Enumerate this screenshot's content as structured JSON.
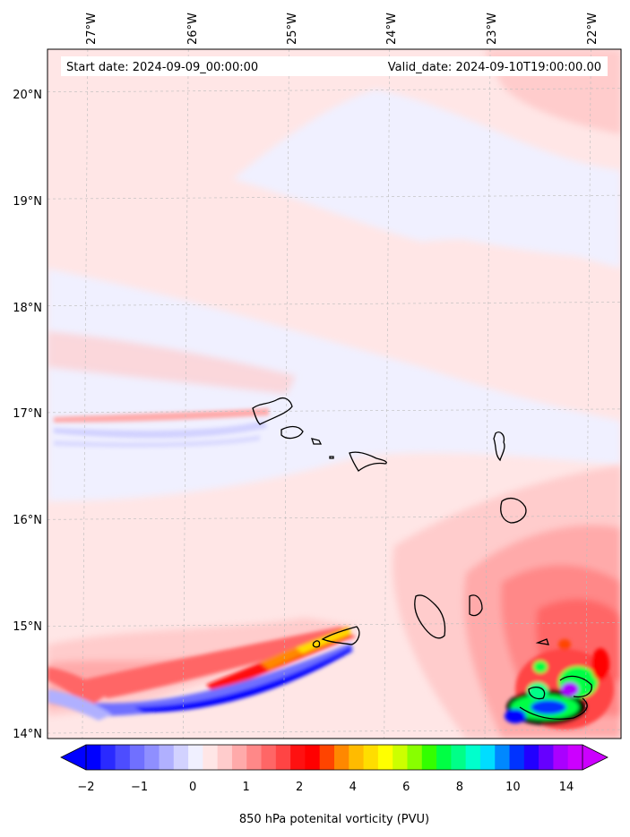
{
  "chart_data": {
    "type": "heatmap",
    "title_left": "Start date: 2024-09-09_00:00:00",
    "title_right": "Valid_date: 2024-09-10T19:00:00.00",
    "colorbar_label": "850 hPa potenital vorticity (PVU)",
    "lon_ticks": [
      "27°W",
      "26°W",
      "25°W",
      "24°W",
      "23°W",
      "22°W"
    ],
    "lat_ticks": [
      "20°N",
      "19°N",
      "18°N",
      "17°N",
      "16°N",
      "15°N",
      "14°N"
    ],
    "lon_range": [
      -27.4,
      -21.7
    ],
    "lat_range": [
      13.95,
      20.4
    ],
    "colorbar_ticks": [
      "−2",
      "−1",
      "0",
      "1",
      "2",
      "4",
      "6",
      "8",
      "10",
      "14"
    ],
    "colorbar_colors": [
      "#0000ff",
      "#2a2aff",
      "#4d4dff",
      "#7070ff",
      "#8f8fff",
      "#b0b0ff",
      "#d2d2ff",
      "#f0f0ff",
      "#ffe6e6",
      "#ffcccc",
      "#ffaaaa",
      "#ff8888",
      "#ff6666",
      "#ff4444",
      "#ff1111",
      "#ff0000",
      "#ff4400",
      "#ff8800",
      "#ffbb00",
      "#ffdd00",
      "#ffff00",
      "#ccff00",
      "#88ff00",
      "#33ff00",
      "#00ff44",
      "#00ff88",
      "#00ffcc",
      "#00ddff",
      "#0088ff",
      "#0033ff",
      "#2200ff",
      "#6600ff",
      "#aa00ff",
      "#cc00ff"
    ],
    "extend": "both"
  }
}
